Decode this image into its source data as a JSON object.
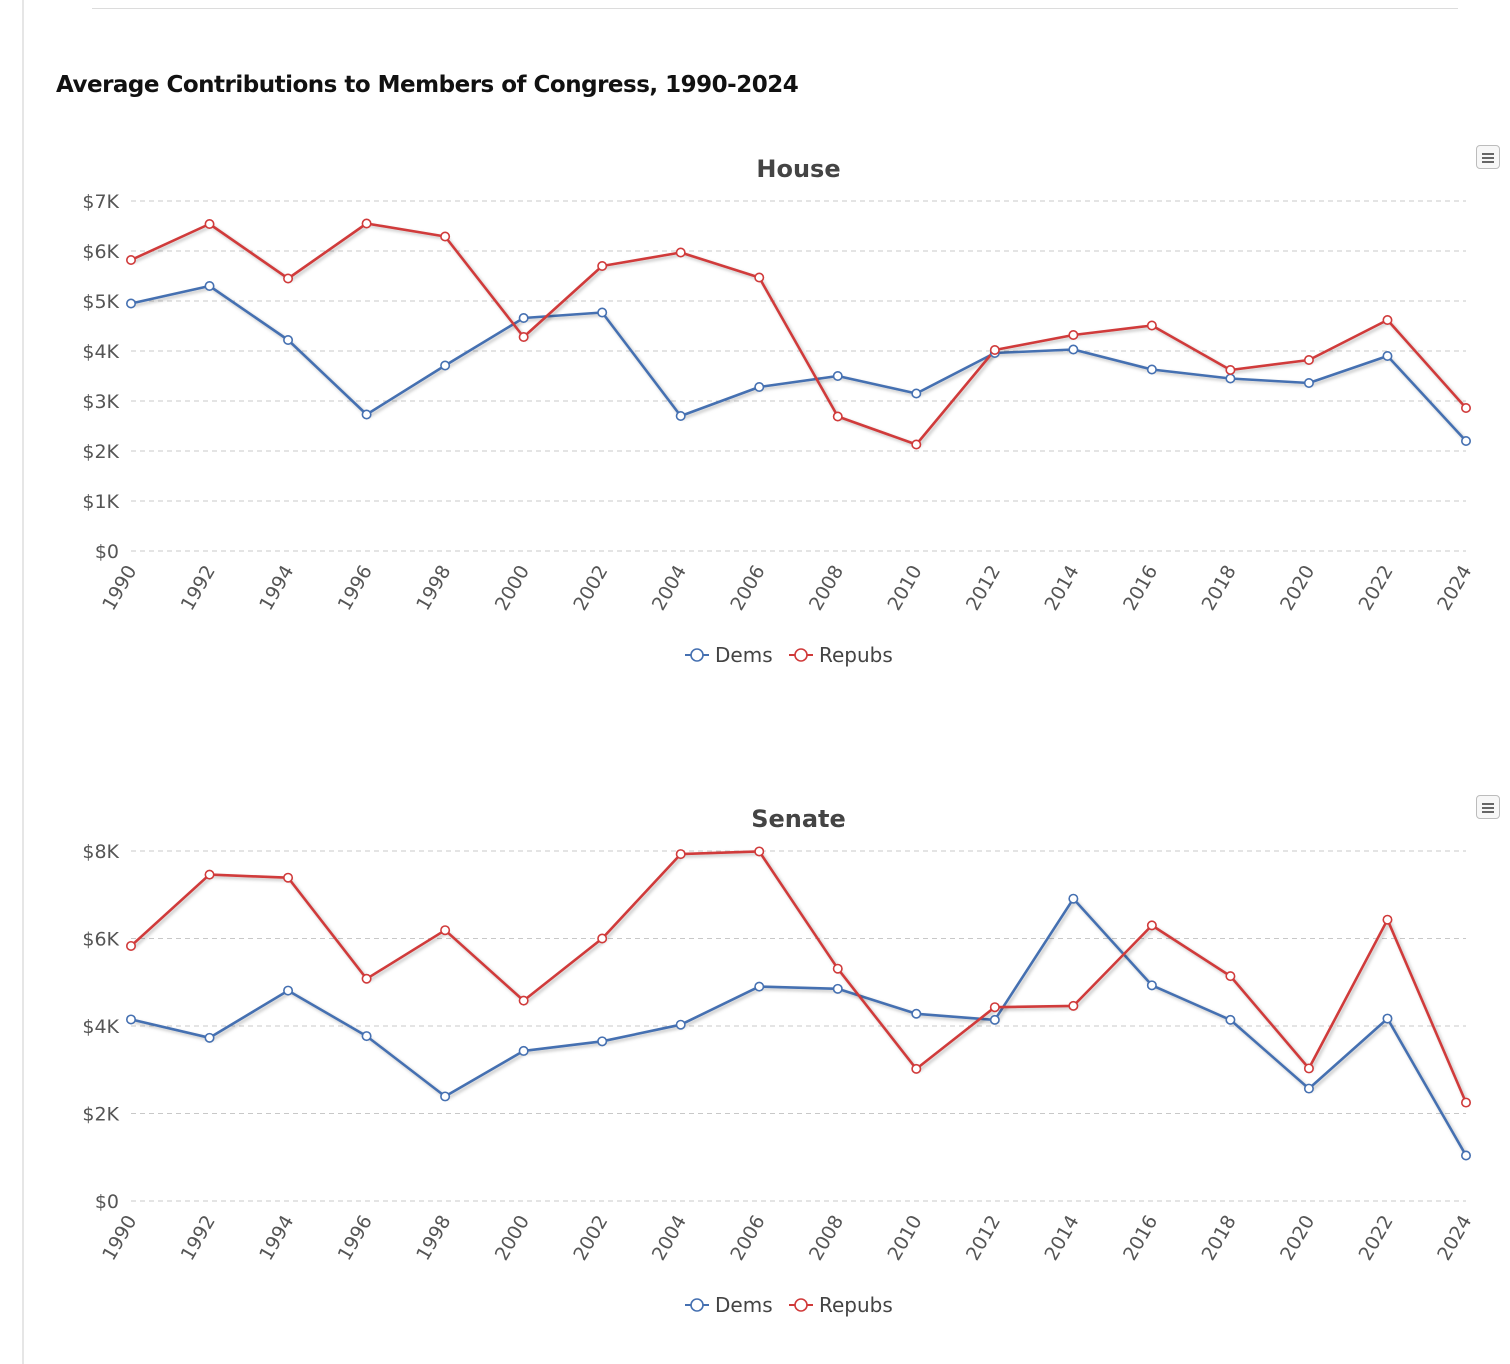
{
  "page": {
    "title": "Average Contributions to Members of Congress, 1990-2024"
  },
  "colors": {
    "dems": "#4570b1",
    "repubs": "#d03a3a",
    "grid": "#c8c8c8",
    "axis_text": "#555555"
  },
  "icons": {
    "menu": "hamburger-menu-icon"
  },
  "chart_data": [
    {
      "id": "house",
      "type": "line",
      "title": "House",
      "xlabel": "",
      "ylabel": "",
      "x": [
        "1990",
        "1992",
        "1994",
        "1996",
        "1998",
        "2000",
        "2002",
        "2004",
        "2006",
        "2008",
        "2010",
        "2012",
        "2014",
        "2016",
        "2018",
        "2020",
        "2022",
        "2024"
      ],
      "ylim": [
        0,
        7000
      ],
      "yticks": [
        0,
        1000,
        2000,
        3000,
        4000,
        5000,
        6000,
        7000
      ],
      "ytick_labels": [
        "$0",
        "$1K",
        "$2K",
        "$3K",
        "$4K",
        "$5K",
        "$6K",
        "$7K"
      ],
      "grid": true,
      "legend_position": "bottom-center",
      "series": [
        {
          "name": "Dems",
          "color": "#4570b1",
          "values": [
            4950,
            5300,
            4220,
            2730,
            3710,
            4660,
            4770,
            2700,
            3280,
            3500,
            3150,
            3960,
            4030,
            3630,
            3450,
            3360,
            3900,
            2200
          ]
        },
        {
          "name": "Repubs",
          "color": "#d03a3a",
          "values": [
            5820,
            6540,
            5450,
            6550,
            6290,
            4280,
            5700,
            5970,
            5470,
            2690,
            2130,
            4020,
            4320,
            4510,
            3620,
            3820,
            4620,
            2860
          ]
        }
      ]
    },
    {
      "id": "senate",
      "type": "line",
      "title": "Senate",
      "xlabel": "",
      "ylabel": "",
      "x": [
        "1990",
        "1992",
        "1994",
        "1996",
        "1998",
        "2000",
        "2002",
        "2004",
        "2006",
        "2008",
        "2010",
        "2012",
        "2014",
        "2016",
        "2018",
        "2020",
        "2022",
        "2024"
      ],
      "ylim": [
        0,
        8000
      ],
      "yticks": [
        0,
        2000,
        4000,
        6000,
        8000
      ],
      "ytick_labels": [
        "$0",
        "$2K",
        "$4K",
        "$6K",
        "$8K"
      ],
      "grid": true,
      "legend_position": "bottom-center",
      "series": [
        {
          "name": "Dems",
          "color": "#4570b1",
          "values": [
            4150,
            3730,
            4810,
            3770,
            2390,
            3430,
            3650,
            4030,
            4900,
            4850,
            4280,
            4140,
            6910,
            4930,
            4140,
            2570,
            4170,
            1040
          ]
        },
        {
          "name": "Repubs",
          "color": "#d03a3a",
          "values": [
            5830,
            7460,
            7390,
            5080,
            6190,
            4580,
            6000,
            7930,
            7990,
            5310,
            3020,
            4430,
            4460,
            6300,
            5140,
            3030,
            6430,
            2250
          ]
        }
      ]
    }
  ]
}
